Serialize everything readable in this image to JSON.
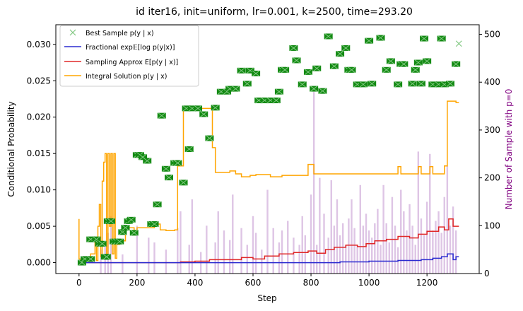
{
  "colors": {
    "best": "#138a13",
    "best_light": "#82c882",
    "fractional": "#2b2bd0",
    "sampling": "#e02828",
    "integral": "#ffa500",
    "hist": "#a05ab4",
    "right_label": "#800080"
  },
  "chart_data": {
    "type": "line",
    "title": "id iter16, init=uniform, lr=0.001, k=2500, time=293.20",
    "xlabel": "Step",
    "ylabel": "Conditional Probability",
    "y2label": "Number of Sample with p=0",
    "xlim": [
      -80,
      1380
    ],
    "ylim": [
      -0.0015,
      0.0327
    ],
    "y2lim": [
      0,
      520
    ],
    "xticks": [
      0,
      200,
      400,
      600,
      800,
      1000,
      1200
    ],
    "yticks": [
      0.0,
      0.005,
      0.01,
      0.015,
      0.02,
      0.025,
      0.03
    ],
    "ytick_labels": [
      "0.000",
      "0.005",
      "0.010",
      "0.015",
      "0.020",
      "0.025",
      "0.030"
    ],
    "y2ticks": [
      0,
      100,
      200,
      300,
      400,
      500
    ],
    "legend_position": "upper-left",
    "legend": [
      {
        "label": "Best Sample p(y | x)",
        "marker": "x"
      },
      {
        "label": "Fractional exp𝔼[log p(y|x)]",
        "marker": "line"
      },
      {
        "label": "Sampling Approx E[p(y | x)]",
        "marker": "line"
      },
      {
        "label": "Integral Solution p(y | x)",
        "marker": "line"
      }
    ],
    "best_sample": [
      [
        10,
        0
      ],
      [
        20,
        0.0005
      ],
      [
        40,
        0.0005
      ],
      [
        40,
        0.0032
      ],
      [
        60,
        0.0032
      ],
      [
        70,
        0.0026
      ],
      [
        80,
        0.0026
      ],
      [
        90,
        0.0008
      ],
      [
        95,
        0.0008
      ],
      [
        100,
        0.0057
      ],
      [
        110,
        0.0057
      ],
      [
        120,
        0.0029
      ],
      [
        130,
        0.0029
      ],
      [
        140,
        0.0029
      ],
      [
        150,
        0.0042
      ],
      [
        160,
        0.0048
      ],
      [
        170,
        0.0057
      ],
      [
        180,
        0.0059
      ],
      [
        190,
        0.0041
      ],
      [
        200,
        0.0148
      ],
      [
        210,
        0.0148
      ],
      [
        220,
        0.0145
      ],
      [
        235,
        0.014
      ],
      [
        250,
        0.0053
      ],
      [
        260,
        0.0053
      ],
      [
        270,
        0.008
      ],
      [
        285,
        0.0202
      ],
      [
        300,
        0.0129
      ],
      [
        310,
        0.0117
      ],
      [
        330,
        0.0137
      ],
      [
        340,
        0.0137
      ],
      [
        360,
        0.011
      ],
      [
        370,
        0.0212
      ],
      [
        380,
        0.0156
      ],
      [
        390,
        0.0212
      ],
      [
        410,
        0.0212
      ],
      [
        430,
        0.0204
      ],
      [
        450,
        0.0171
      ],
      [
        470,
        0.0213
      ],
      [
        490,
        0.0235
      ],
      [
        510,
        0.0235
      ],
      [
        520,
        0.0239
      ],
      [
        540,
        0.0239
      ],
      [
        560,
        0.0264
      ],
      [
        580,
        0.0246
      ],
      [
        590,
        0.0264
      ],
      [
        610,
        0.026
      ],
      [
        620,
        0.0223
      ],
      [
        640,
        0.0223
      ],
      [
        660,
        0.0223
      ],
      [
        680,
        0.0223
      ],
      [
        690,
        0.0235
      ],
      [
        700,
        0.0265
      ],
      [
        710,
        0.0265
      ],
      [
        740,
        0.0295
      ],
      [
        750,
        0.0278
      ],
      [
        770,
        0.0245
      ],
      [
        790,
        0.0262
      ],
      [
        810,
        0.0239
      ],
      [
        820,
        0.0267
      ],
      [
        840,
        0.0236
      ],
      [
        860,
        0.0311
      ],
      [
        880,
        0.027
      ],
      [
        900,
        0.0287
      ],
      [
        920,
        0.0295
      ],
      [
        930,
        0.0265
      ],
      [
        940,
        0.0265
      ],
      [
        960,
        0.0245
      ],
      [
        980,
        0.0245
      ],
      [
        1000,
        0.0305
      ],
      [
        1010,
        0.0246
      ],
      [
        1040,
        0.0309
      ],
      [
        1060,
        0.0265
      ],
      [
        1075,
        0.0277
      ],
      [
        1100,
        0.0245
      ],
      [
        1110,
        0.0273
      ],
      [
        1120,
        0.0273
      ],
      [
        1150,
        0.0246
      ],
      [
        1160,
        0.0265
      ],
      [
        1170,
        0.0275
      ],
      [
        1180,
        0.0246
      ],
      [
        1190,
        0.0308
      ],
      [
        1200,
        0.0277
      ],
      [
        1220,
        0.0245
      ],
      [
        1240,
        0.0245
      ],
      [
        1250,
        0.0308
      ],
      [
        1260,
        0.0245
      ],
      [
        1280,
        0.0246
      ],
      [
        1300,
        0.0273
      ]
    ],
    "best_sample_last": [
      1310,
      0.0301
    ],
    "fractional": [
      [
        0,
        0
      ],
      [
        900,
        0
      ],
      [
        900,
        0.0001
      ],
      [
        1000,
        0.0001
      ],
      [
        1000,
        0.0002
      ],
      [
        1100,
        0.0002
      ],
      [
        1100,
        0.0003
      ],
      [
        1180,
        0.0003
      ],
      [
        1180,
        0.0004
      ],
      [
        1220,
        0.0004
      ],
      [
        1220,
        0.0006
      ],
      [
        1250,
        0.0006
      ],
      [
        1250,
        0.0008
      ],
      [
        1270,
        0.0008
      ],
      [
        1270,
        0.0012
      ],
      [
        1290,
        0.0012
      ],
      [
        1290,
        0.0004
      ],
      [
        1300,
        0.0004
      ],
      [
        1300,
        0.0008
      ],
      [
        1310,
        0.0008
      ]
    ],
    "sampling": [
      [
        0,
        0
      ],
      [
        350,
        0
      ],
      [
        350,
        0.0001
      ],
      [
        400,
        0.0001
      ],
      [
        400,
        0.0002
      ],
      [
        450,
        0.0002
      ],
      [
        450,
        0.0004
      ],
      [
        560,
        0.0004
      ],
      [
        560,
        0.0007
      ],
      [
        600,
        0.0007
      ],
      [
        600,
        0.0005
      ],
      [
        640,
        0.0005
      ],
      [
        640,
        0.0009
      ],
      [
        690,
        0.0009
      ],
      [
        690,
        0.0012
      ],
      [
        740,
        0.0012
      ],
      [
        740,
        0.0014
      ],
      [
        790,
        0.0014
      ],
      [
        790,
        0.0016
      ],
      [
        820,
        0.0016
      ],
      [
        820,
        0.0013
      ],
      [
        850,
        0.0013
      ],
      [
        850,
        0.0018
      ],
      [
        880,
        0.0018
      ],
      [
        880,
        0.0021
      ],
      [
        920,
        0.0021
      ],
      [
        920,
        0.0024
      ],
      [
        960,
        0.0024
      ],
      [
        960,
        0.0022
      ],
      [
        990,
        0.0022
      ],
      [
        990,
        0.0026
      ],
      [
        1020,
        0.0026
      ],
      [
        1020,
        0.003
      ],
      [
        1060,
        0.003
      ],
      [
        1060,
        0.0032
      ],
      [
        1100,
        0.0032
      ],
      [
        1100,
        0.0036
      ],
      [
        1140,
        0.0036
      ],
      [
        1140,
        0.0034
      ],
      [
        1170,
        0.0034
      ],
      [
        1170,
        0.0039
      ],
      [
        1200,
        0.0039
      ],
      [
        1200,
        0.0043
      ],
      [
        1240,
        0.0043
      ],
      [
        1240,
        0.0049
      ],
      [
        1260,
        0.0049
      ],
      [
        1260,
        0.0045
      ],
      [
        1275,
        0.0045
      ],
      [
        1275,
        0.006
      ],
      [
        1290,
        0.006
      ],
      [
        1290,
        0.005
      ],
      [
        1310,
        0.005
      ]
    ],
    "integral": [
      [
        0,
        0.006
      ],
      [
        0,
        0.0005
      ],
      [
        20,
        0.0005
      ],
      [
        20,
        0.0003
      ],
      [
        40,
        0.0003
      ],
      [
        40,
        0.0012
      ],
      [
        55,
        0.0012
      ],
      [
        55,
        0.0034
      ],
      [
        60,
        0.0034
      ],
      [
        60,
        0.0003
      ],
      [
        65,
        0.0003
      ],
      [
        65,
        0.005
      ],
      [
        70,
        0.005
      ],
      [
        70,
        0.008
      ],
      [
        75,
        0.008
      ],
      [
        75,
        0.0008
      ],
      [
        80,
        0.0008
      ],
      [
        80,
        0.0112
      ],
      [
        85,
        0.0112
      ],
      [
        85,
        0.0138
      ],
      [
        90,
        0.0138
      ],
      [
        90,
        0.015
      ],
      [
        95,
        0.015
      ],
      [
        95,
        0.0006
      ],
      [
        100,
        0.0006
      ],
      [
        100,
        0.015
      ],
      [
        105,
        0.015
      ],
      [
        105,
        0.005
      ],
      [
        110,
        0.005
      ],
      [
        110,
        0.015
      ],
      [
        115,
        0.015
      ],
      [
        115,
        0.0012
      ],
      [
        120,
        0.0012
      ],
      [
        120,
        0.015
      ],
      [
        125,
        0.015
      ],
      [
        125,
        0.0006
      ],
      [
        130,
        0.0006
      ],
      [
        130,
        0.0025
      ],
      [
        140,
        0.0025
      ],
      [
        140,
        0.003
      ],
      [
        160,
        0.003
      ],
      [
        160,
        0.0048
      ],
      [
        190,
        0.0048
      ],
      [
        190,
        0.0042
      ],
      [
        200,
        0.0042
      ],
      [
        200,
        0.0048
      ],
      [
        260,
        0.0048
      ],
      [
        260,
        0.0053
      ],
      [
        280,
        0.0053
      ],
      [
        280,
        0.0045
      ],
      [
        300,
        0.0045
      ],
      [
        300,
        0.0044
      ],
      [
        330,
        0.0044
      ],
      [
        330,
        0.0045
      ],
      [
        340,
        0.0045
      ],
      [
        340,
        0.0133
      ],
      [
        360,
        0.0133
      ],
      [
        360,
        0.0212
      ],
      [
        460,
        0.0212
      ],
      [
        460,
        0.0158
      ],
      [
        470,
        0.0158
      ],
      [
        470,
        0.0124
      ],
      [
        520,
        0.0124
      ],
      [
        520,
        0.0126
      ],
      [
        540,
        0.0126
      ],
      [
        540,
        0.0122
      ],
      [
        560,
        0.0122
      ],
      [
        560,
        0.0118
      ],
      [
        590,
        0.0118
      ],
      [
        590,
        0.012
      ],
      [
        610,
        0.012
      ],
      [
        610,
        0.0121
      ],
      [
        660,
        0.0121
      ],
      [
        660,
        0.0118
      ],
      [
        700,
        0.0118
      ],
      [
        700,
        0.012
      ],
      [
        790,
        0.012
      ],
      [
        790,
        0.0135
      ],
      [
        810,
        0.0135
      ],
      [
        810,
        0.0122
      ],
      [
        1100,
        0.0122
      ],
      [
        1100,
        0.0132
      ],
      [
        1110,
        0.0132
      ],
      [
        1110,
        0.0122
      ],
      [
        1170,
        0.0122
      ],
      [
        1170,
        0.0132
      ],
      [
        1180,
        0.0132
      ],
      [
        1180,
        0.0122
      ],
      [
        1210,
        0.0122
      ],
      [
        1210,
        0.0132
      ],
      [
        1220,
        0.0132
      ],
      [
        1220,
        0.0122
      ],
      [
        1260,
        0.0122
      ],
      [
        1260,
        0.0133
      ],
      [
        1270,
        0.0133
      ],
      [
        1270,
        0.0222
      ],
      [
        1300,
        0.0222
      ],
      [
        1300,
        0.022
      ],
      [
        1310,
        0.022
      ]
    ],
    "histogram": [
      [
        75,
        50
      ],
      [
        90,
        60
      ],
      [
        100,
        85
      ],
      [
        110,
        120
      ],
      [
        150,
        40
      ],
      [
        200,
        100
      ],
      [
        240,
        75
      ],
      [
        260,
        65
      ],
      [
        300,
        50
      ],
      [
        340,
        95
      ],
      [
        350,
        130
      ],
      [
        380,
        60
      ],
      [
        390,
        155
      ],
      [
        420,
        45
      ],
      [
        440,
        100
      ],
      [
        470,
        65
      ],
      [
        480,
        130
      ],
      [
        500,
        90
      ],
      [
        520,
        70
      ],
      [
        530,
        165
      ],
      [
        560,
        95
      ],
      [
        580,
        60
      ],
      [
        600,
        120
      ],
      [
        610,
        85
      ],
      [
        630,
        50
      ],
      [
        650,
        175
      ],
      [
        670,
        95
      ],
      [
        690,
        65
      ],
      [
        700,
        90
      ],
      [
        720,
        110
      ],
      [
        740,
        75
      ],
      [
        760,
        60
      ],
      [
        770,
        120
      ],
      [
        780,
        80
      ],
      [
        800,
        165
      ],
      [
        810,
        380
      ],
      [
        820,
        60
      ],
      [
        830,
        200
      ],
      [
        845,
        125
      ],
      [
        860,
        75
      ],
      [
        870,
        195
      ],
      [
        880,
        100
      ],
      [
        890,
        155
      ],
      [
        900,
        80
      ],
      [
        910,
        105
      ],
      [
        920,
        60
      ],
      [
        930,
        115
      ],
      [
        940,
        155
      ],
      [
        950,
        95
      ],
      [
        960,
        60
      ],
      [
        970,
        185
      ],
      [
        980,
        100
      ],
      [
        990,
        125
      ],
      [
        1000,
        90
      ],
      [
        1010,
        75
      ],
      [
        1020,
        105
      ],
      [
        1030,
        135
      ],
      [
        1040,
        60
      ],
      [
        1050,
        185
      ],
      [
        1060,
        105
      ],
      [
        1070,
        65
      ],
      [
        1080,
        160
      ],
      [
        1090,
        100
      ],
      [
        1100,
        55
      ],
      [
        1110,
        175
      ],
      [
        1120,
        130
      ],
      [
        1130,
        90
      ],
      [
        1140,
        145
      ],
      [
        1150,
        100
      ],
      [
        1160,
        60
      ],
      [
        1170,
        255
      ],
      [
        1180,
        115
      ],
      [
        1190,
        80
      ],
      [
        1200,
        150
      ],
      [
        1210,
        250
      ],
      [
        1220,
        90
      ],
      [
        1230,
        110
      ],
      [
        1240,
        130
      ],
      [
        1250,
        85
      ],
      [
        1260,
        160
      ],
      [
        1270,
        225
      ],
      [
        1280,
        100
      ],
      [
        1290,
        140
      ],
      [
        1300,
        90
      ]
    ]
  }
}
